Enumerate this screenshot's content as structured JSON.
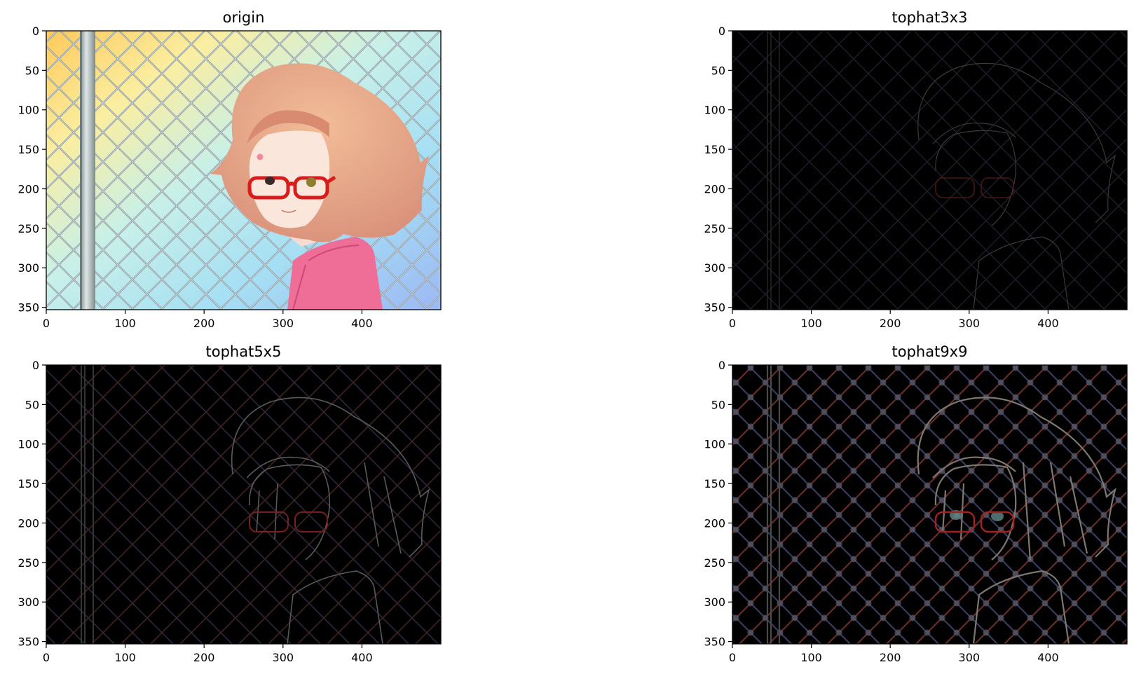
{
  "chart_data": [
    {
      "type": "image",
      "title": "origin",
      "variant": "color",
      "xlim": [
        0,
        500
      ],
      "ylim": [
        353,
        0
      ],
      "xticks": [
        "0",
        "100",
        "200",
        "300",
        "400"
      ],
      "yticks": [
        "0",
        "50",
        "100",
        "150",
        "200",
        "250",
        "300",
        "350"
      ]
    },
    {
      "type": "image",
      "title": "tophat3x3",
      "variant": "tophat-faint",
      "xlim": [
        0,
        500
      ],
      "ylim": [
        353,
        0
      ],
      "xticks": [
        "0",
        "100",
        "200",
        "300",
        "400"
      ],
      "yticks": [
        "0",
        "50",
        "100",
        "150",
        "200",
        "250",
        "300",
        "350"
      ]
    },
    {
      "type": "image",
      "title": "tophat5x5",
      "variant": "tophat-medium",
      "xlim": [
        0,
        500
      ],
      "ylim": [
        353,
        0
      ],
      "xticks": [
        "0",
        "100",
        "200",
        "300",
        "400"
      ],
      "yticks": [
        "0",
        "50",
        "100",
        "150",
        "200",
        "250",
        "300",
        "350"
      ]
    },
    {
      "type": "image",
      "title": "tophat9x9",
      "variant": "tophat-strong",
      "xlim": [
        0,
        500
      ],
      "ylim": [
        353,
        0
      ],
      "xticks": [
        "0",
        "100",
        "200",
        "300",
        "400"
      ],
      "yticks": [
        "0",
        "50",
        "100",
        "150",
        "200",
        "250",
        "300",
        "350"
      ]
    }
  ],
  "colors": {
    "sky_gradient": [
      "#ffc95a",
      "#fbeea0",
      "#c8f0e8",
      "#a6e0f4",
      "#9cb8f4"
    ],
    "hair": "#e8a888",
    "hair_shadow": "#c87858",
    "skin": "#fbe6dc",
    "glasses": "#d81c1c",
    "jacket": "#f06c98",
    "pole": "#b8c4c4",
    "fence": "#909ca4",
    "tophat_background": "#000000"
  }
}
